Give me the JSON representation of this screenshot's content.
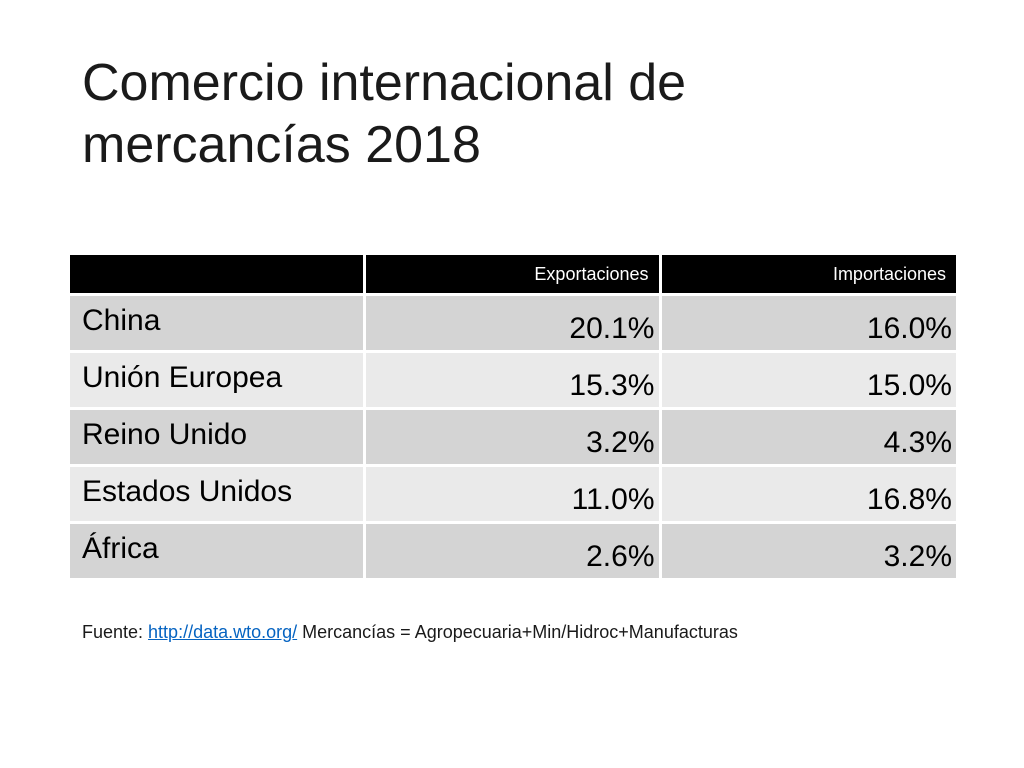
{
  "slide": {
    "title_line1": "Comercio internacional de",
    "title_line2": "mercancías 2018"
  },
  "table": {
    "headers": [
      "",
      "Exportaciones",
      "Importaciones"
    ],
    "rows": [
      {
        "name": "China",
        "exports": "20.1%",
        "imports": "16.0%"
      },
      {
        "name": "Unión Europea",
        "exports": "15.3%",
        "imports": "15.0%"
      },
      {
        "name": "Reino Unido",
        "exports": "3.2%",
        "imports": "4.3%"
      },
      {
        "name": "Estados Unidos",
        "exports": "11.0%",
        "imports": "16.8%"
      },
      {
        "name": "África",
        "exports": "2.6%",
        "imports": "3.2%"
      }
    ],
    "colors": {
      "header_bg": "#000000",
      "row_odd": "#d4d4d4",
      "row_even": "#eaeaea"
    }
  },
  "source": {
    "prefix": "Fuente: ",
    "link_text": "http://data.wto.org/",
    "suffix": " Mercancías = Agropecuaria+Min/Hidroc+Manufacturas",
    "link_color": "#0563c1"
  }
}
